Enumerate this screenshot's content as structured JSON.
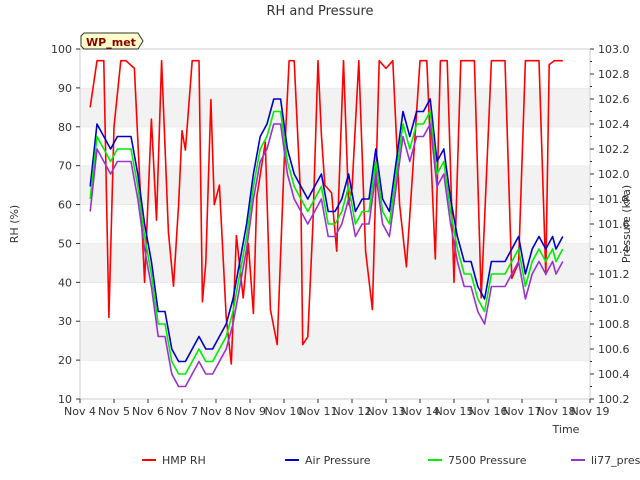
{
  "chart_data": {
    "type": "line",
    "title": "RH and Pressure",
    "xlabel": "Time",
    "ylabel_left": "RH (%)",
    "ylabel_right": "Pressure (kPa)",
    "site_badge": "WP_met",
    "x_ticks": [
      "Nov 4",
      "Nov 5",
      "Nov 6",
      "Nov 7",
      "Nov 8",
      "Nov 9",
      "Nov 10",
      "Nov 11",
      "Nov 12",
      "Nov 13",
      "Nov 14",
      "Nov 15",
      "Nov 16",
      "Nov 17",
      "Nov 18",
      "Nov 19"
    ],
    "xlim": [
      4,
      19
    ],
    "ylim_left": [
      10,
      100
    ],
    "ylim_right": [
      100.2,
      103.0
    ],
    "y_ticks_left": [
      10,
      20,
      30,
      40,
      50,
      60,
      70,
      80,
      90,
      100
    ],
    "y_ticks_right": [
      "100.2",
      "100.4",
      "100.6",
      "100.8",
      "101.0",
      "101.2",
      "101.4",
      "101.6",
      "101.8",
      "102.0",
      "102.2",
      "102.4",
      "102.6",
      "102.8",
      "103.0"
    ],
    "grid": "horizontal bands",
    "legend_position": "bottom",
    "series": [
      {
        "name": "HMP RH",
        "color": "#ff0000",
        "axis": "left",
        "x": [
          4.3,
          4.5,
          4.7,
          4.85,
          5.0,
          5.2,
          5.35,
          5.6,
          5.9,
          6.1,
          6.25,
          6.4,
          6.6,
          6.75,
          6.9,
          7.0,
          7.1,
          7.3,
          7.5,
          7.6,
          7.7,
          7.85,
          7.95,
          8.1,
          8.3,
          8.45,
          8.6,
          8.8,
          8.95,
          9.1,
          9.2,
          9.45,
          9.6,
          9.8,
          10.0,
          10.15,
          10.3,
          10.5,
          10.55,
          10.7,
          10.85,
          11.0,
          11.1,
          11.2,
          11.4,
          11.55,
          11.75,
          11.9,
          12.0,
          12.2,
          12.4,
          12.6,
          12.8,
          13.0,
          13.2,
          13.4,
          13.6,
          14.0,
          14.2,
          14.45,
          14.6,
          14.8,
          15.0,
          15.2,
          15.4,
          15.6,
          15.8,
          16.1,
          16.3,
          16.5,
          16.7,
          16.9,
          17.1,
          17.3,
          17.5,
          17.7,
          17.8,
          17.95,
          18.2
        ],
        "y": [
          85,
          97,
          97,
          31,
          80,
          97,
          97,
          95,
          40,
          82,
          56,
          97,
          53,
          39,
          60,
          79,
          74,
          97,
          97,
          35,
          45,
          87,
          60,
          65,
          31,
          19,
          52,
          36,
          50,
          32,
          62,
          76,
          33,
          24,
          70,
          97,
          97,
          60,
          24,
          26,
          55,
          97,
          78,
          65,
          63,
          48,
          97,
          60,
          64,
          97,
          48,
          33,
          97,
          95,
          97,
          60,
          44,
          97,
          97,
          46,
          97,
          97,
          40,
          97,
          97,
          97,
          36,
          97,
          97,
          97,
          41,
          45,
          97,
          97,
          97,
          42,
          96,
          97,
          97
        ]
      },
      {
        "name": "Air Pressure",
        "color": "#0000cc",
        "axis": "right",
        "x": [
          4.3,
          4.5,
          4.7,
          4.9,
          5.1,
          5.3,
          5.5,
          5.7,
          5.9,
          6.1,
          6.3,
          6.5,
          6.7,
          6.9,
          7.1,
          7.3,
          7.5,
          7.7,
          7.9,
          8.1,
          8.3,
          8.5,
          8.7,
          8.9,
          9.1,
          9.3,
          9.5,
          9.7,
          9.9,
          10.1,
          10.3,
          10.5,
          10.7,
          10.9,
          11.1,
          11.3,
          11.5,
          11.7,
          11.9,
          12.1,
          12.3,
          12.5,
          12.7,
          12.9,
          13.1,
          13.3,
          13.5,
          13.7,
          13.9,
          14.1,
          14.3,
          14.5,
          14.7,
          14.9,
          15.1,
          15.3,
          15.5,
          15.7,
          15.9,
          16.1,
          16.3,
          16.5,
          16.7,
          16.9,
          17.1,
          17.3,
          17.5,
          17.7,
          17.9,
          18.0,
          18.2
        ],
        "y": [
          101.9,
          102.4,
          102.3,
          102.2,
          102.3,
          102.3,
          102.3,
          102.0,
          101.6,
          101.3,
          100.9,
          100.9,
          100.6,
          100.5,
          100.5,
          100.6,
          100.7,
          100.6,
          100.6,
          100.7,
          100.8,
          101.0,
          101.3,
          101.6,
          102.0,
          102.3,
          102.4,
          102.6,
          102.6,
          102.2,
          102.0,
          101.9,
          101.8,
          101.9,
          102.0,
          101.7,
          101.7,
          101.8,
          102.0,
          101.7,
          101.8,
          101.8,
          102.2,
          101.8,
          101.7,
          102.1,
          102.5,
          102.3,
          102.5,
          102.5,
          102.6,
          102.1,
          102.2,
          101.8,
          101.5,
          101.3,
          101.3,
          101.1,
          101.0,
          101.3,
          101.3,
          101.3,
          101.4,
          101.5,
          101.2,
          101.4,
          101.5,
          101.4,
          101.5,
          101.4,
          101.5
        ]
      },
      {
        "name": "7500 Pressure",
        "color": "#00ee00",
        "axis": "right",
        "x": [
          4.3,
          4.5,
          4.7,
          4.9,
          5.1,
          5.3,
          5.5,
          5.7,
          5.9,
          6.1,
          6.3,
          6.5,
          6.7,
          6.9,
          7.1,
          7.3,
          7.5,
          7.7,
          7.9,
          8.1,
          8.3,
          8.5,
          8.7,
          8.9,
          9.1,
          9.3,
          9.5,
          9.7,
          9.9,
          10.1,
          10.3,
          10.5,
          10.7,
          10.9,
          11.1,
          11.3,
          11.5,
          11.7,
          11.9,
          12.1,
          12.3,
          12.5,
          12.7,
          12.9,
          13.1,
          13.3,
          13.5,
          13.7,
          13.9,
          14.1,
          14.3,
          14.5,
          14.7,
          14.9,
          15.1,
          15.3,
          15.5,
          15.7,
          15.9,
          16.1,
          16.3,
          16.5,
          16.7,
          16.9,
          17.1,
          17.3,
          17.5,
          17.7,
          17.9,
          18.0,
          18.2
        ],
        "y": [
          101.8,
          102.3,
          102.2,
          102.1,
          102.2,
          102.2,
          102.2,
          101.9,
          101.5,
          101.2,
          100.8,
          100.8,
          100.5,
          100.4,
          100.4,
          100.5,
          100.6,
          100.5,
          100.5,
          100.6,
          100.7,
          100.9,
          101.2,
          101.5,
          101.9,
          102.2,
          102.3,
          102.5,
          102.5,
          102.1,
          101.9,
          101.8,
          101.7,
          101.8,
          101.9,
          101.6,
          101.6,
          101.7,
          101.9,
          101.6,
          101.7,
          101.7,
          102.1,
          101.7,
          101.6,
          102.0,
          102.4,
          102.2,
          102.4,
          102.4,
          102.5,
          102.0,
          102.1,
          101.7,
          101.4,
          101.2,
          101.2,
          101.0,
          100.9,
          101.2,
          101.2,
          101.2,
          101.3,
          101.4,
          101.1,
          101.3,
          101.4,
          101.3,
          101.4,
          101.3,
          101.4
        ]
      },
      {
        "name": "li77_pres",
        "color": "#9933cc",
        "axis": "right",
        "x": [
          4.3,
          4.5,
          4.7,
          4.9,
          5.1,
          5.3,
          5.5,
          5.7,
          5.9,
          6.1,
          6.3,
          6.5,
          6.7,
          6.9,
          7.1,
          7.3,
          7.5,
          7.7,
          7.9,
          8.1,
          8.3,
          8.5,
          8.7,
          8.9,
          9.1,
          9.3,
          9.5,
          9.7,
          9.9,
          10.1,
          10.3,
          10.5,
          10.7,
          10.9,
          11.1,
          11.3,
          11.5,
          11.7,
          11.9,
          12.1,
          12.3,
          12.5,
          12.7,
          12.9,
          13.1,
          13.3,
          13.5,
          13.7,
          13.9,
          14.1,
          14.3,
          14.5,
          14.7,
          14.9,
          15.1,
          15.3,
          15.5,
          15.7,
          15.9,
          16.1,
          16.3,
          16.5,
          16.7,
          16.9,
          17.1,
          17.3,
          17.5,
          17.7,
          17.9,
          18.0,
          18.2
        ],
        "y": [
          101.7,
          102.2,
          102.1,
          102.0,
          102.1,
          102.1,
          102.1,
          101.8,
          101.4,
          101.1,
          100.7,
          100.7,
          100.4,
          100.3,
          100.3,
          100.4,
          100.5,
          100.4,
          100.4,
          100.5,
          100.6,
          100.8,
          101.1,
          101.4,
          101.8,
          102.1,
          102.2,
          102.4,
          102.4,
          102.0,
          101.8,
          101.7,
          101.6,
          101.7,
          101.8,
          101.5,
          101.5,
          101.6,
          101.8,
          101.5,
          101.6,
          101.6,
          102.0,
          101.6,
          101.5,
          101.9,
          102.3,
          102.1,
          102.3,
          102.3,
          102.4,
          101.9,
          102.0,
          101.6,
          101.3,
          101.1,
          101.1,
          100.9,
          100.8,
          101.1,
          101.1,
          101.1,
          101.2,
          101.3,
          101.0,
          101.2,
          101.3,
          101.2,
          101.3,
          101.2,
          101.3
        ]
      }
    ]
  }
}
